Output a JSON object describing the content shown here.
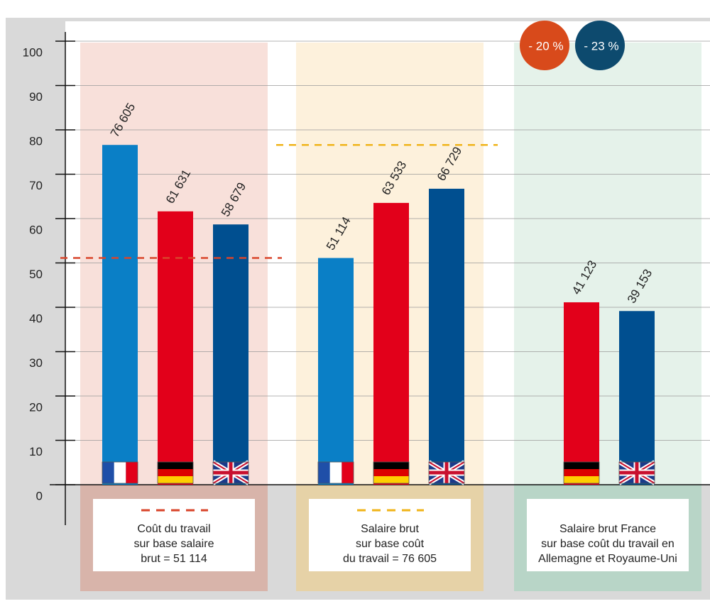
{
  "chart_data": {
    "type": "bar",
    "groups": [
      {
        "caption": [
          "Coût du travail",
          "sur base salaire",
          "brut = 51 114"
        ],
        "fill": "#f7ddd6",
        "caption_fill": "#d8b4aa"
      },
      {
        "caption": [
          "Salaire brut",
          "sur base coût",
          "du travail = 76 605"
        ],
        "fill": "#fdf0d8",
        "caption_fill": "#e6d2a7"
      },
      {
        "caption": [
          "Salaire brut France",
          "sur base coût du travail en",
          "Allemagne et Royaume-Uni"
        ],
        "fill": "#e2f1e8",
        "caption_fill": "#b8d5c7"
      }
    ],
    "series": [
      {
        "color": "#0a7fc6",
        "values": [
          76605,
          51114,
          null
        ],
        "value_labels": [
          "76 605",
          "51 114",
          null
        ],
        "axis": "y2"
      },
      {
        "color": "#e2001a",
        "values": [
          61631,
          63533,
          41123
        ],
        "value_labels": [
          "61 631",
          "63 533",
          "41 123"
        ],
        "axis": "y2"
      },
      {
        "color": "#004f90",
        "values": [
          58679,
          66729,
          39153
        ],
        "value_labels": [
          "58 679",
          "66 729",
          "39 153"
        ],
        "axis": "y2"
      }
    ],
    "reference_lines": [
      {
        "value": 51114,
        "group": 0,
        "color": "#d9452b"
      },
      {
        "value": 76605,
        "group": 1,
        "color": "#f0b41a"
      }
    ],
    "annotations": [
      {
        "text": "- 20 %",
        "series": 1,
        "group": 2,
        "color": "#d84a1b"
      },
      {
        "text": "- 23 %",
        "series": 2,
        "group": 2,
        "color": "#0d4a6e"
      }
    ],
    "ylim": [
      0,
      100
    ],
    "yticks": [
      0,
      10,
      20,
      30,
      40,
      50,
      60,
      70,
      80,
      90,
      100
    ],
    "y2lim": [
      0,
      100000
    ],
    "grid": true
  }
}
